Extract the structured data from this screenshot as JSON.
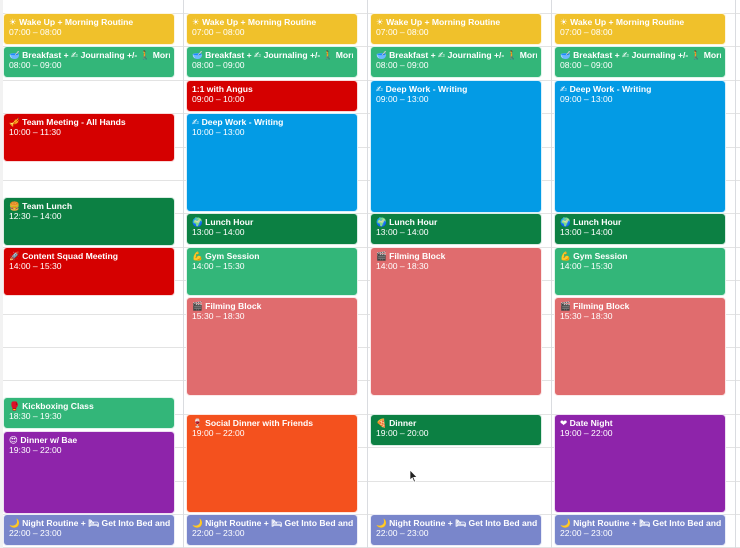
{
  "colors": {
    "banana": "#f0c12b",
    "basil": "#0c8043",
    "sage": "#33b679",
    "tomato": "#d50000",
    "peacock": "#039be5",
    "flamingo": "#e06c6e",
    "grape": "#8e24aa",
    "tangerine": "#f4511e",
    "lavender": "#7986cb"
  },
  "days": [
    {
      "events": [
        {
          "title": "☀ Wake Up + Morning Routine",
          "time": "07:00 – 08:00",
          "color": "banana",
          "icon": "sun-icon"
        },
        {
          "title": "🥣 Breakfast + ✍ Journaling +/- 🚶 Morning",
          "time": "08:00 – 09:00",
          "color": "sage",
          "icon": "bowl-icon"
        },
        {
          "title": "🎺 Team Meeting - All Hands",
          "time": "10:00 – 11:30",
          "color": "tomato",
          "icon": "trumpet-icon"
        },
        {
          "title": "🍔 Team Lunch",
          "time": "12:30 – 14:00",
          "color": "basil",
          "icon": "burger-icon"
        },
        {
          "title": "🚀 Content Squad Meeting",
          "time": "14:00 – 15:30",
          "color": "tomato",
          "icon": "rocket-icon"
        },
        {
          "title": "🥊 Kickboxing Class",
          "time": "18:30 – 19:30",
          "color": "sage",
          "icon": "glove-icon"
        },
        {
          "title": "😍 Dinner w/ Bae",
          "time": "19:30 – 22:00",
          "color": "grape",
          "icon": "heart-eyes-icon"
        },
        {
          "title": "🌙 Night Routine + 🛏 Get Into Bed and 📖 R",
          "time": "22:00 – 23:00",
          "color": "lavender",
          "icon": "moon-icon"
        }
      ]
    },
    {
      "events": [
        {
          "title": "☀ Wake Up + Morning Routine",
          "time": "07:00 – 08:00",
          "color": "banana",
          "icon": "sun-icon"
        },
        {
          "title": "🥣 Breakfast + ✍ Journaling +/- 🚶 Morning",
          "time": "08:00 – 09:00",
          "color": "sage",
          "icon": "bowl-icon"
        },
        {
          "title": "1:1 with Angus",
          "time": "09:00 – 10:00",
          "color": "tomato",
          "icon": ""
        },
        {
          "title": "✍ Deep Work - Writing",
          "time": "10:00 – 13:00",
          "color": "peacock",
          "icon": "writing-hand-icon"
        },
        {
          "title": "🌍 Lunch Hour",
          "time": "13:00 – 14:00",
          "color": "basil",
          "icon": "globe-icon"
        },
        {
          "title": "💪 Gym Session",
          "time": "14:00 – 15:30",
          "color": "sage",
          "icon": "muscle-icon"
        },
        {
          "title": "🎬 Filming Block",
          "time": "15:30 – 18:30",
          "color": "flamingo",
          "icon": "clapper-icon"
        },
        {
          "title": "🍷 Social Dinner with Friends",
          "time": "19:00 – 22:00",
          "color": "tangerine",
          "icon": "wine-icon"
        },
        {
          "title": "🌙 Night Routine + 🛏 Get Into Bed and 📖 R",
          "time": "22:00 – 23:00",
          "color": "lavender",
          "icon": "moon-icon"
        }
      ]
    },
    {
      "events": [
        {
          "title": "☀ Wake Up + Morning Routine",
          "time": "07:00 – 08:00",
          "color": "banana",
          "icon": "sun-icon"
        },
        {
          "title": "🥣 Breakfast + ✍ Journaling +/- 🚶 Morning",
          "time": "08:00 – 09:00",
          "color": "sage",
          "icon": "bowl-icon"
        },
        {
          "title": "✍ Deep Work - Writing",
          "time": "09:00 – 13:00",
          "color": "peacock",
          "icon": "writing-hand-icon"
        },
        {
          "title": "🌍 Lunch Hour",
          "time": "13:00 – 14:00",
          "color": "basil",
          "icon": "globe-icon"
        },
        {
          "title": "🎬 Filming Block",
          "time": "14:00 – 18:30",
          "color": "flamingo",
          "icon": "clapper-icon"
        },
        {
          "title": "🍕 Dinner",
          "time": "19:00 – 20:00",
          "color": "basil",
          "icon": "pizza-icon"
        },
        {
          "title": "🌙 Night Routine + 🛏 Get Into Bed and 📖 R",
          "time": "22:00 – 23:00",
          "color": "lavender",
          "icon": "moon-icon"
        }
      ]
    },
    {
      "events": [
        {
          "title": "☀ Wake Up + Morning Routine",
          "time": "07:00 – 08:00",
          "color": "banana",
          "icon": "sun-icon"
        },
        {
          "title": "🥣 Breakfast + ✍ Journaling +/- 🚶 Morning",
          "time": "08:00 – 09:00",
          "color": "sage",
          "icon": "bowl-icon"
        },
        {
          "title": "✍ Deep Work - Writing",
          "time": "09:00 – 13:00",
          "color": "peacock",
          "icon": "writing-hand-icon"
        },
        {
          "title": "🌍 Lunch Hour",
          "time": "13:00 – 14:00",
          "color": "basil",
          "icon": "globe-icon"
        },
        {
          "title": "💪 Gym Session",
          "time": "14:00 – 15:30",
          "color": "sage",
          "icon": "muscle-icon"
        },
        {
          "title": "🎬 Filming Block",
          "time": "15:30 – 18:30",
          "color": "flamingo",
          "icon": "clapper-icon"
        },
        {
          "title": "❤ Date Night",
          "time": "19:00 – 22:00",
          "color": "grape",
          "icon": "heart-icon"
        },
        {
          "title": "🌙 Night Routine + 🛏 Get Into Bed and 📖 R",
          "time": "22:00 – 23:00",
          "color": "lavender",
          "icon": "moon-icon"
        }
      ]
    }
  ]
}
